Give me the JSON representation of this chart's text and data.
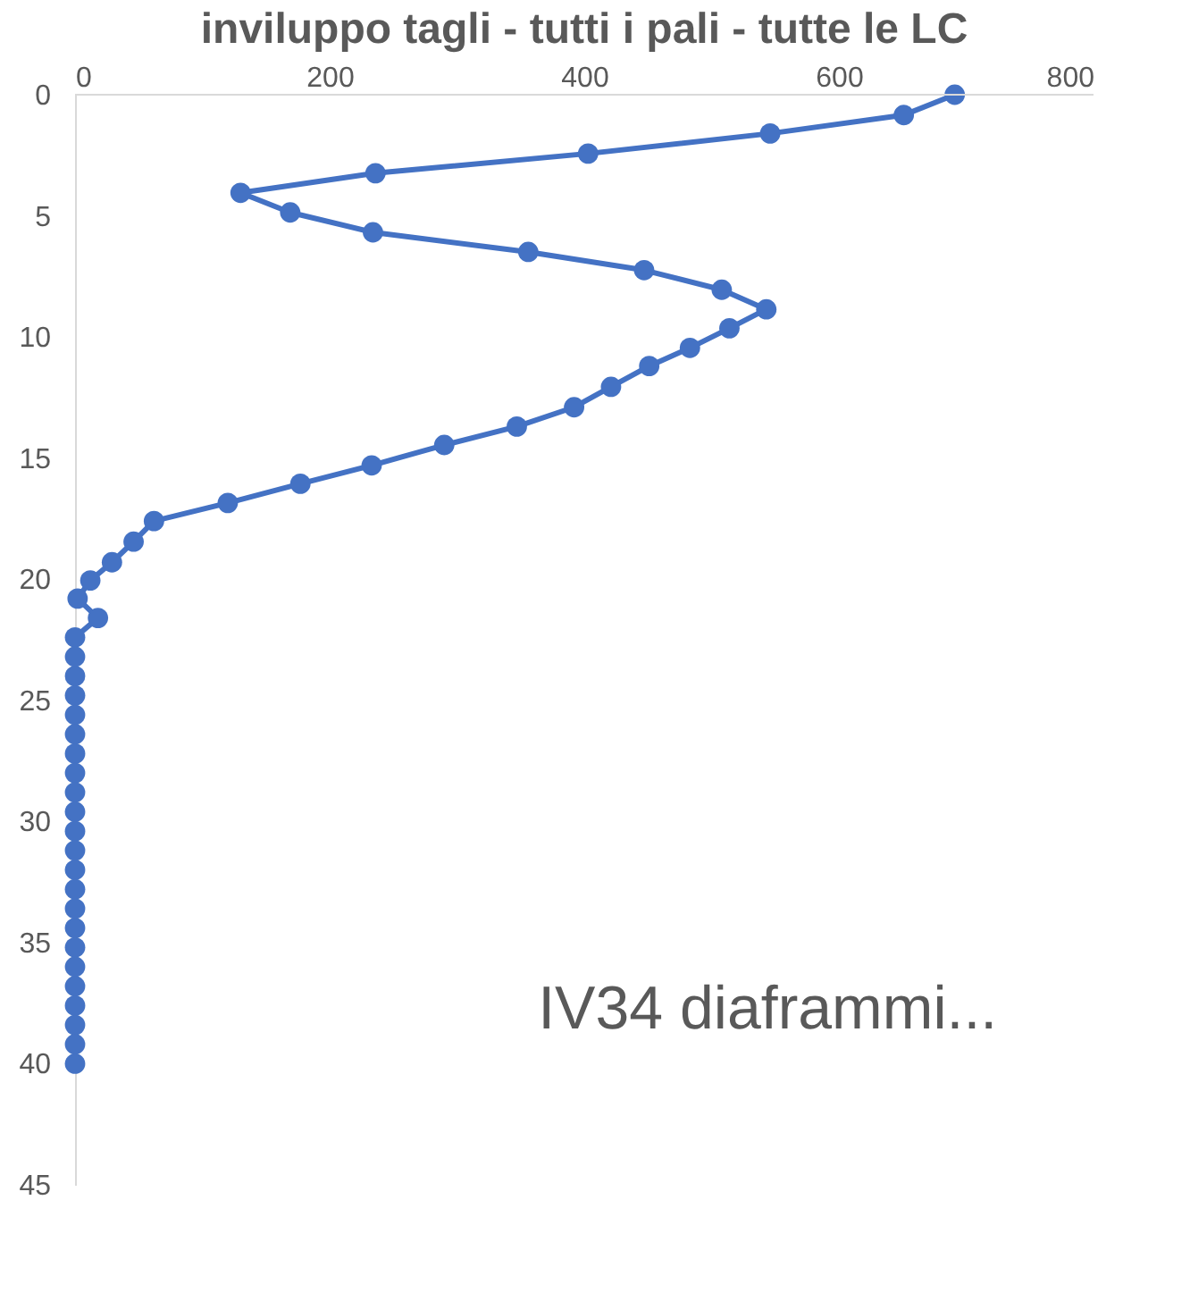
{
  "chart_data": {
    "type": "line",
    "title": "inviluppo tagli - tutti i pali - tutte le LC",
    "x": [
      691,
      651,
      546,
      403,
      236,
      130,
      169,
      234,
      356,
      447,
      508,
      543,
      514,
      483,
      451,
      421,
      392,
      347,
      290,
      233,
      177,
      120,
      62,
      46,
      29,
      12,
      2,
      18,
      0,
      0,
      0,
      0,
      0,
      0,
      0,
      0,
      0,
      0,
      0,
      0,
      0,
      0,
      0,
      0,
      0,
      0,
      0,
      0,
      0,
      0,
      0
    ],
    "series": [
      {
        "color": "#4472c4",
        "values": [
          0,
          0.84,
          1.6,
          2.43,
          3.24,
          4.05,
          4.86,
          5.68,
          6.49,
          7.24,
          8.05,
          8.86,
          9.64,
          10.45,
          11.2,
          12.06,
          12.9,
          13.7,
          14.46,
          15.3,
          16.06,
          16.85,
          17.6,
          18.45,
          19.3,
          20.05,
          20.8,
          21.6,
          22.4,
          23.2,
          24.0,
          24.8,
          25.6,
          26.4,
          27.2,
          28.0,
          28.8,
          29.6,
          30.4,
          31.2,
          32.0,
          32.8,
          33.6,
          34.4,
          35.2,
          36.0,
          36.8,
          37.6,
          38.4,
          39.2,
          40.0
        ]
      }
    ],
    "xlim": [
      0,
      800
    ],
    "xticks": [
      0,
      200,
      400,
      600,
      800
    ],
    "ylim": [
      45,
      0
    ],
    "yticks": [
      0,
      5,
      10,
      15,
      20,
      25,
      30,
      35,
      40,
      45
    ],
    "marker": "circle",
    "grid": false,
    "annotations": [
      "IV34 diaframmi..."
    ]
  }
}
